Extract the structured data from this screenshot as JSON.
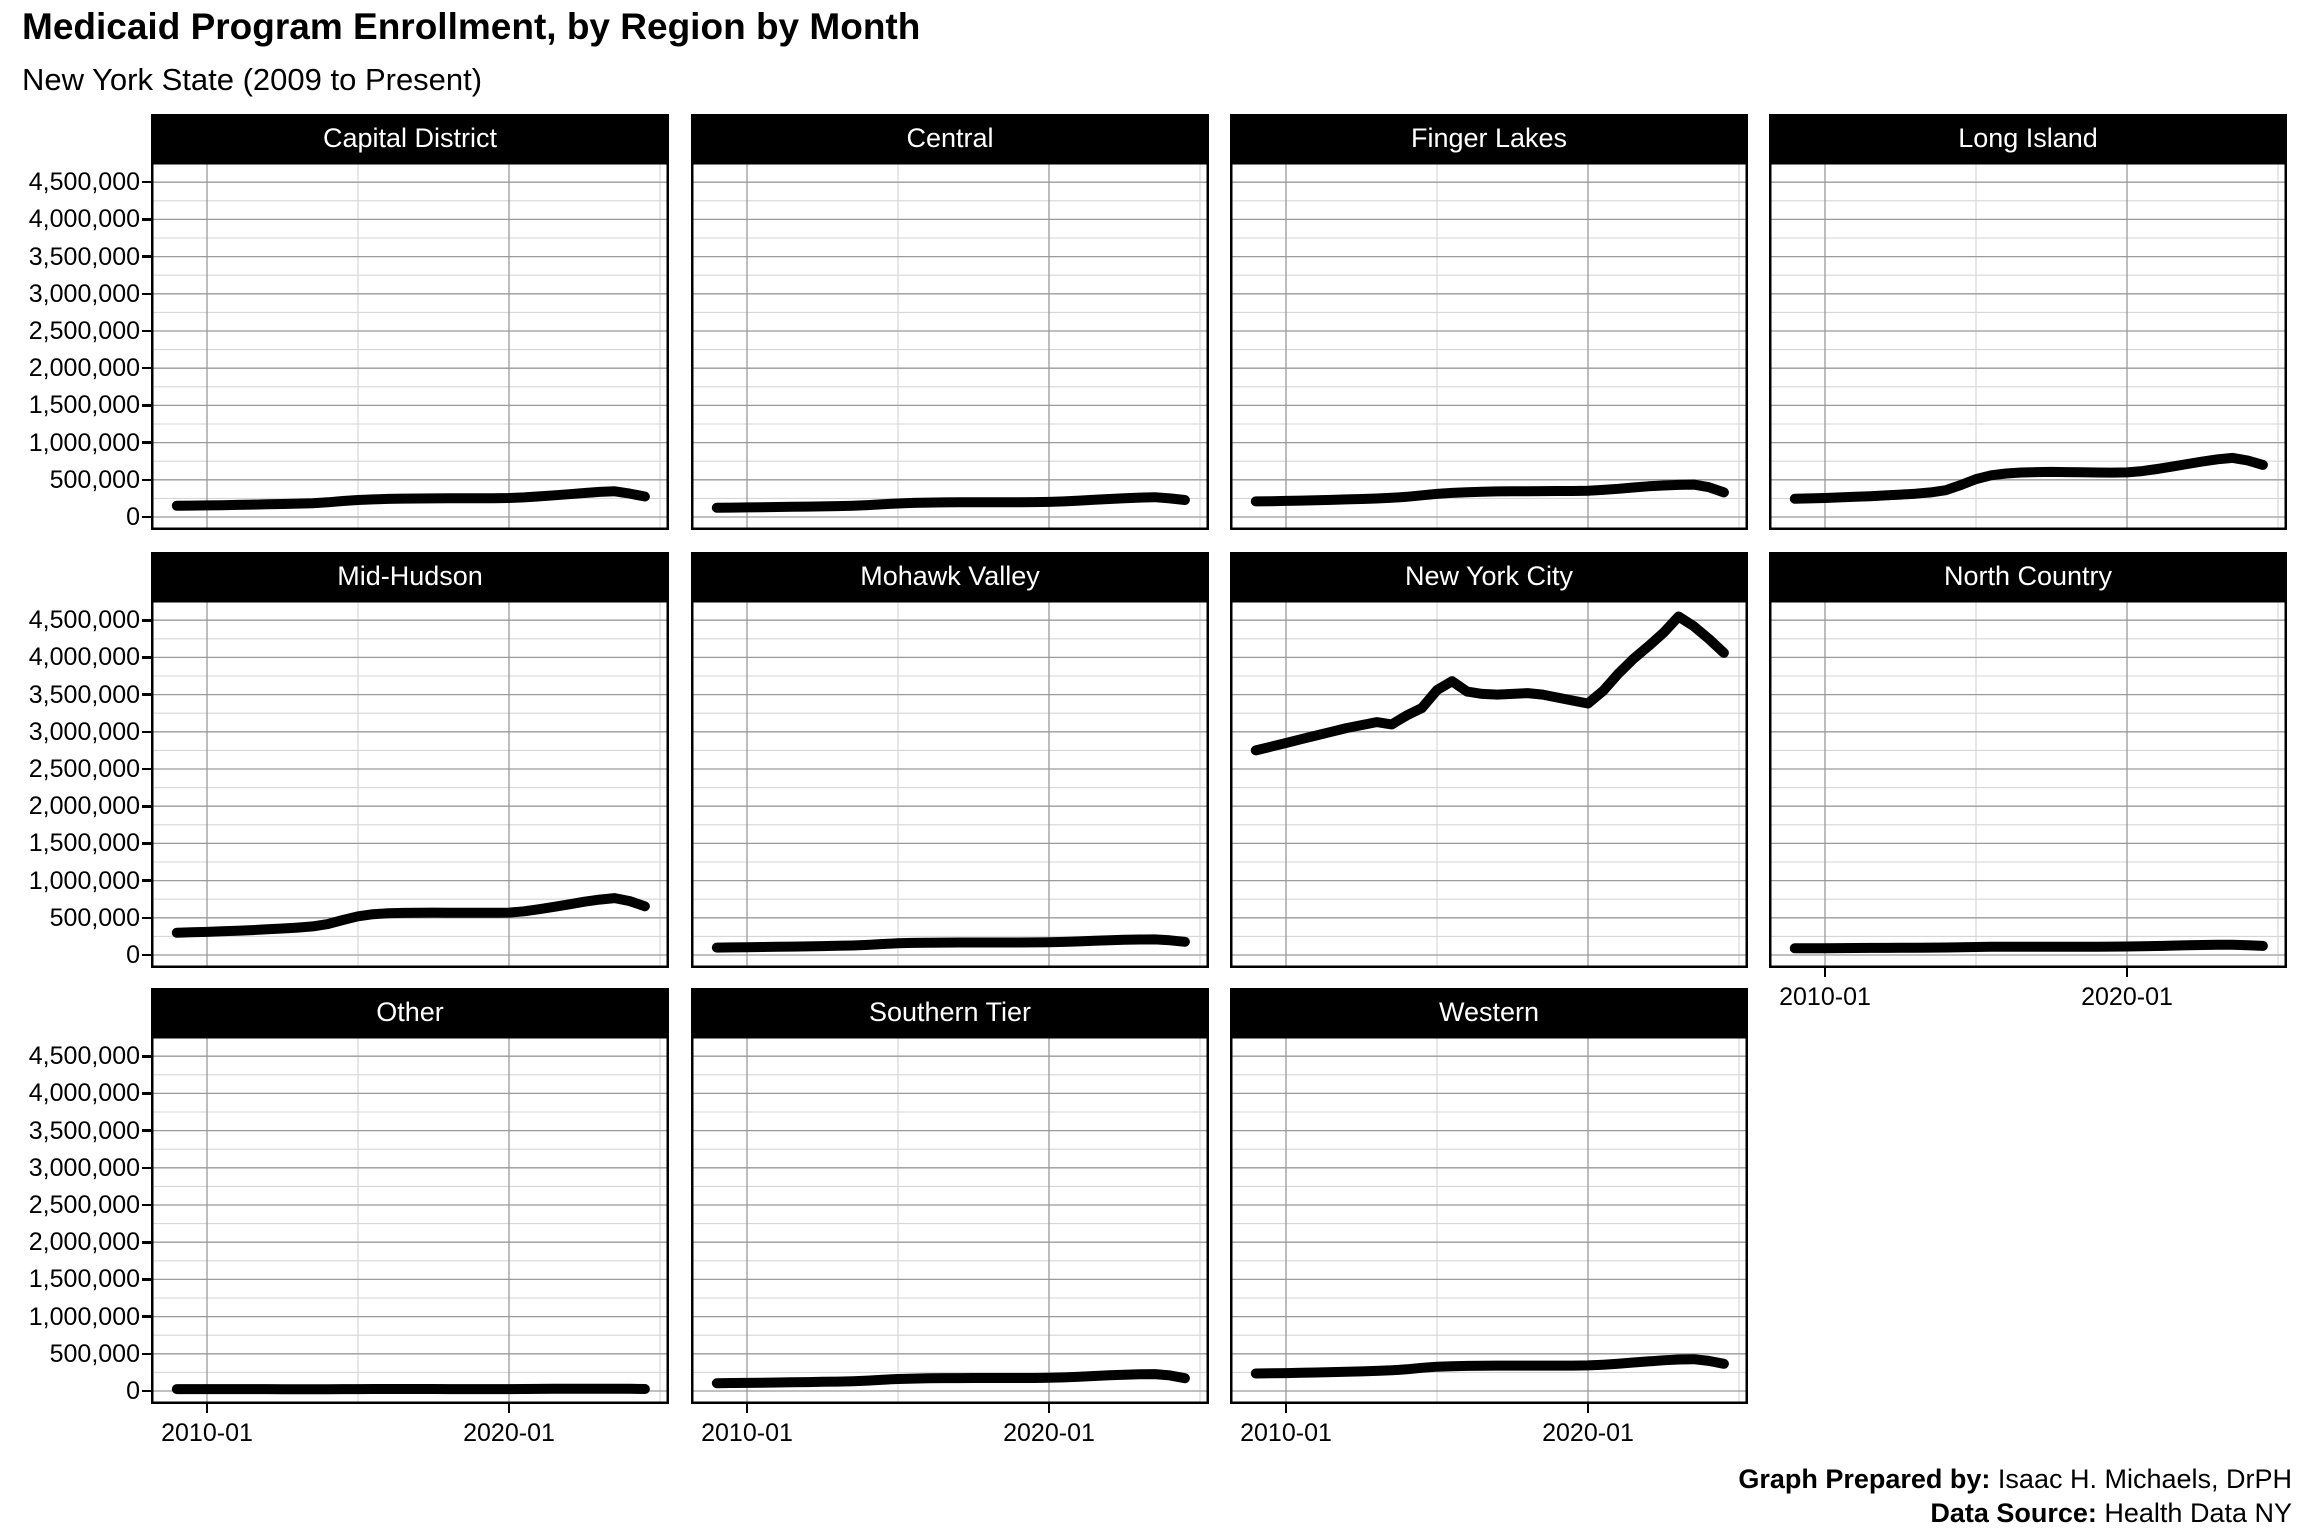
{
  "title": "Medicaid Program Enrollment, by Region by Month",
  "subtitle": "New York State (2009 to Present)",
  "footer": {
    "prepared_by_label": "Graph Prepared by:",
    "prepared_by": "Isaac H. Michaels, DrPH",
    "source_label": "Data Source:",
    "source": "Health Data NY"
  },
  "colors": {
    "strip_background": "#000000",
    "strip_text": "#ffffff",
    "panel_background": "#ffffff",
    "panel_border": "#000000",
    "grid_major": "#9a9a9a",
    "grid_minor": "#d6d6d6",
    "line": "#000000"
  },
  "chart_data": {
    "type": "line",
    "title": "Medicaid Program Enrollment, by Region by Month",
    "subtitle": "New York State (2009 to Present)",
    "facet_layout": "4 columns x 3 rows, 11 panels",
    "x_unit": "year (monthly data, sampled every 6 months)",
    "x_start": 2009.0,
    "x_step": 0.5,
    "x_axis": {
      "ticks": [
        {
          "t": 2010.0,
          "label": "2010-01"
        },
        {
          "t": 2020.0,
          "label": "2020-01"
        }
      ],
      "minor": [
        2015.0,
        2025.0
      ],
      "range": [
        2008.1,
        2025.3
      ]
    },
    "y_axis": {
      "tick_values": [
        0,
        500000,
        1000000,
        1500000,
        2000000,
        2500000,
        3000000,
        3500000,
        4000000,
        4500000
      ],
      "tick_labels": [
        "0",
        "500,000",
        "1,000,000",
        "1,500,000",
        "2,000,000",
        "2,500,000",
        "3,000,000",
        "3,500,000",
        "4,000,000",
        "4,500,000"
      ],
      "minor_values": [
        250000,
        750000,
        1250000,
        1750000,
        2250000,
        2750000,
        3250000,
        3750000,
        4250000,
        4750000
      ],
      "range": [
        -190000,
        4770000
      ],
      "grid": true,
      "legend": "none"
    },
    "series": [
      {
        "name": "Capital District",
        "values": [
          150000,
          153000,
          156000,
          159000,
          163000,
          167000,
          171000,
          175000,
          180000,
          186000,
          198000,
          215000,
          228000,
          237000,
          243000,
          247000,
          249000,
          250000,
          251000,
          252000,
          252000,
          253000,
          256000,
          264000,
          277000,
          292000,
          307000,
          322000,
          338000,
          345000,
          315000,
          275000
        ]
      },
      {
        "name": "Central",
        "values": [
          125000,
          127000,
          129000,
          131000,
          134000,
          137000,
          140000,
          143000,
          147000,
          152000,
          160000,
          172000,
          182000,
          189000,
          193000,
          196000,
          197000,
          198000,
          198000,
          198000,
          199000,
          200000,
          203000,
          210000,
          220000,
          231000,
          242000,
          252000,
          261000,
          266000,
          250000,
          228000
        ]
      },
      {
        "name": "Finger Lakes",
        "values": [
          210000,
          213000,
          216000,
          220000,
          225000,
          230000,
          236000,
          242000,
          249000,
          258000,
          272000,
          292000,
          310000,
          324000,
          334000,
          340000,
          344000,
          346000,
          347000,
          348000,
          349000,
          350000,
          354000,
          364000,
          379000,
          396000,
          412000,
          424000,
          432000,
          435000,
          400000,
          330000
        ]
      },
      {
        "name": "Long Island",
        "values": [
          245000,
          250000,
          256000,
          263000,
          271000,
          280000,
          290000,
          301000,
          313000,
          330000,
          360000,
          430000,
          510000,
          560000,
          585000,
          598000,
          604000,
          606000,
          604000,
          601000,
          598000,
          597000,
          600000,
          617000,
          645000,
          678000,
          712000,
          746000,
          775000,
          795000,
          760000,
          700000
        ]
      },
      {
        "name": "Mid-Hudson",
        "values": [
          300000,
          305000,
          311000,
          318000,
          326000,
          335000,
          345000,
          356000,
          368000,
          385000,
          415000,
          470000,
          520000,
          548000,
          560000,
          566000,
          569000,
          570000,
          569000,
          568000,
          567000,
          567000,
          570000,
          587000,
          615000,
          648000,
          682000,
          716000,
          745000,
          765000,
          725000,
          655000
        ]
      },
      {
        "name": "Mohawk Valley",
        "values": [
          100000,
          102000,
          104000,
          107000,
          110000,
          113000,
          116000,
          119000,
          123000,
          128000,
          136000,
          148000,
          157000,
          162000,
          165000,
          167000,
          168000,
          168000,
          168000,
          168000,
          168000,
          169000,
          171000,
          176000,
          183000,
          191000,
          198000,
          204000,
          208000,
          210000,
          198000,
          178000
        ]
      },
      {
        "name": "New York City",
        "values": [
          2750000,
          2800000,
          2850000,
          2900000,
          2950000,
          3000000,
          3050000,
          3090000,
          3130000,
          3100000,
          3220000,
          3320000,
          3560000,
          3680000,
          3540000,
          3510000,
          3500000,
          3510000,
          3520000,
          3500000,
          3460000,
          3420000,
          3380000,
          3550000,
          3780000,
          3980000,
          4150000,
          4330000,
          4550000,
          4420000,
          4250000,
          4060000
        ]
      },
      {
        "name": "North Country",
        "values": [
          90000,
          91000,
          92000,
          93000,
          94000,
          95000,
          96000,
          97000,
          98000,
          99000,
          101000,
          105000,
          108000,
          110000,
          111000,
          112000,
          112000,
          112000,
          112000,
          112000,
          112000,
          113000,
          114000,
          117000,
          121000,
          126000,
          130000,
          134000,
          137000,
          138000,
          132000,
          122000
        ]
      },
      {
        "name": "Other",
        "values": [
          25000,
          25000,
          25000,
          25000,
          25000,
          25000,
          25000,
          24000,
          24000,
          24000,
          24000,
          25000,
          26000,
          27000,
          27000,
          27000,
          27000,
          27000,
          26000,
          26000,
          26000,
          26000,
          26000,
          27000,
          28000,
          29000,
          30000,
          31000,
          31000,
          31000,
          29000,
          27000
        ]
      },
      {
        "name": "Southern Tier",
        "values": [
          105000,
          107000,
          109000,
          111000,
          114000,
          117000,
          120000,
          123000,
          127000,
          132000,
          140000,
          152000,
          161000,
          167000,
          171000,
          173000,
          174000,
          175000,
          175000,
          175000,
          175000,
          175000,
          177000,
          183000,
          192000,
          202000,
          211000,
          219000,
          225000,
          227000,
          210000,
          172000
        ]
      },
      {
        "name": "Western",
        "values": [
          235000,
          238000,
          241000,
          245000,
          249000,
          254000,
          259000,
          264000,
          270000,
          278000,
          292000,
          312000,
          326000,
          333000,
          337000,
          340000,
          341000,
          342000,
          342000,
          341000,
          341000,
          341000,
          344000,
          353000,
          367000,
          383000,
          398000,
          412000,
          423000,
          428000,
          405000,
          365000
        ]
      }
    ]
  }
}
